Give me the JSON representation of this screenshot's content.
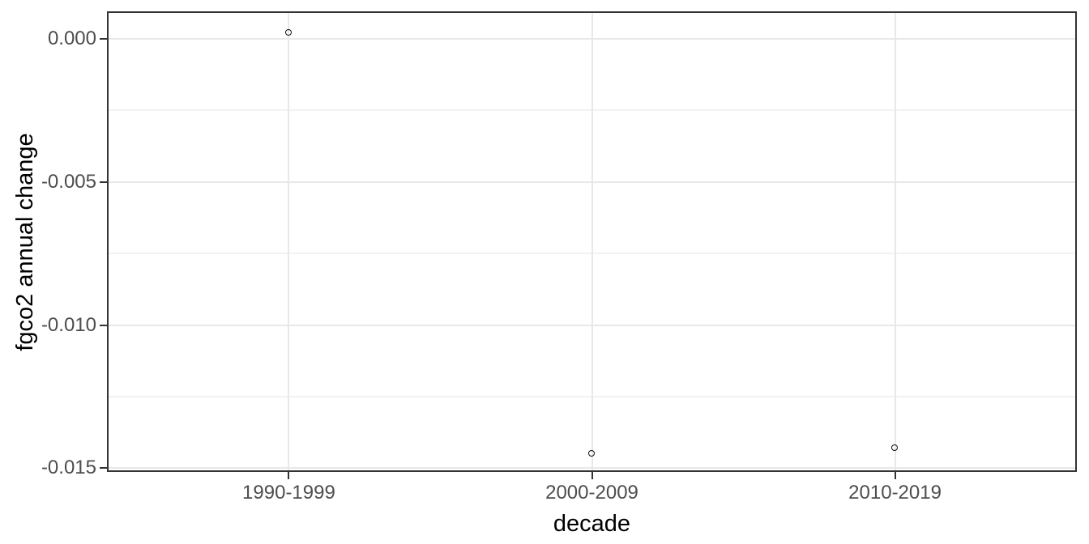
{
  "chart_data": {
    "type": "scatter",
    "title": "",
    "xlabel": "decade",
    "ylabel": "fgco2 annual change",
    "categories": [
      "1990-1999",
      "2000-2009",
      "2010-2019"
    ],
    "series": [
      {
        "name": "fgco2 annual change",
        "values": [
          0.0002,
          -0.0145,
          -0.0143
        ]
      }
    ],
    "marker": "open-circle",
    "ylim": [
      -0.01513,
      0.00096
    ],
    "y_ticks": [
      {
        "value": 0.0,
        "label": "0.000"
      },
      {
        "value": -0.005,
        "label": "-0.005"
      },
      {
        "value": -0.01,
        "label": "-0.010"
      },
      {
        "value": -0.015,
        "label": "-0.015"
      }
    ],
    "y_minor_ticks": [
      -0.0025,
      -0.0075,
      -0.0125
    ],
    "grid": "horizontal major+minor, vertical major at categories",
    "legend": "none",
    "theme": {
      "panel_background": "#ffffff",
      "panel_border_color": "#333333",
      "grid_major_color": "#e8e8e8",
      "grid_minor_color": "#f2f2f2",
      "tick_color": "#333333",
      "tick_label_color": "#4d4d4d",
      "axis_title_color": "#000000",
      "point_color": "#111111"
    }
  }
}
